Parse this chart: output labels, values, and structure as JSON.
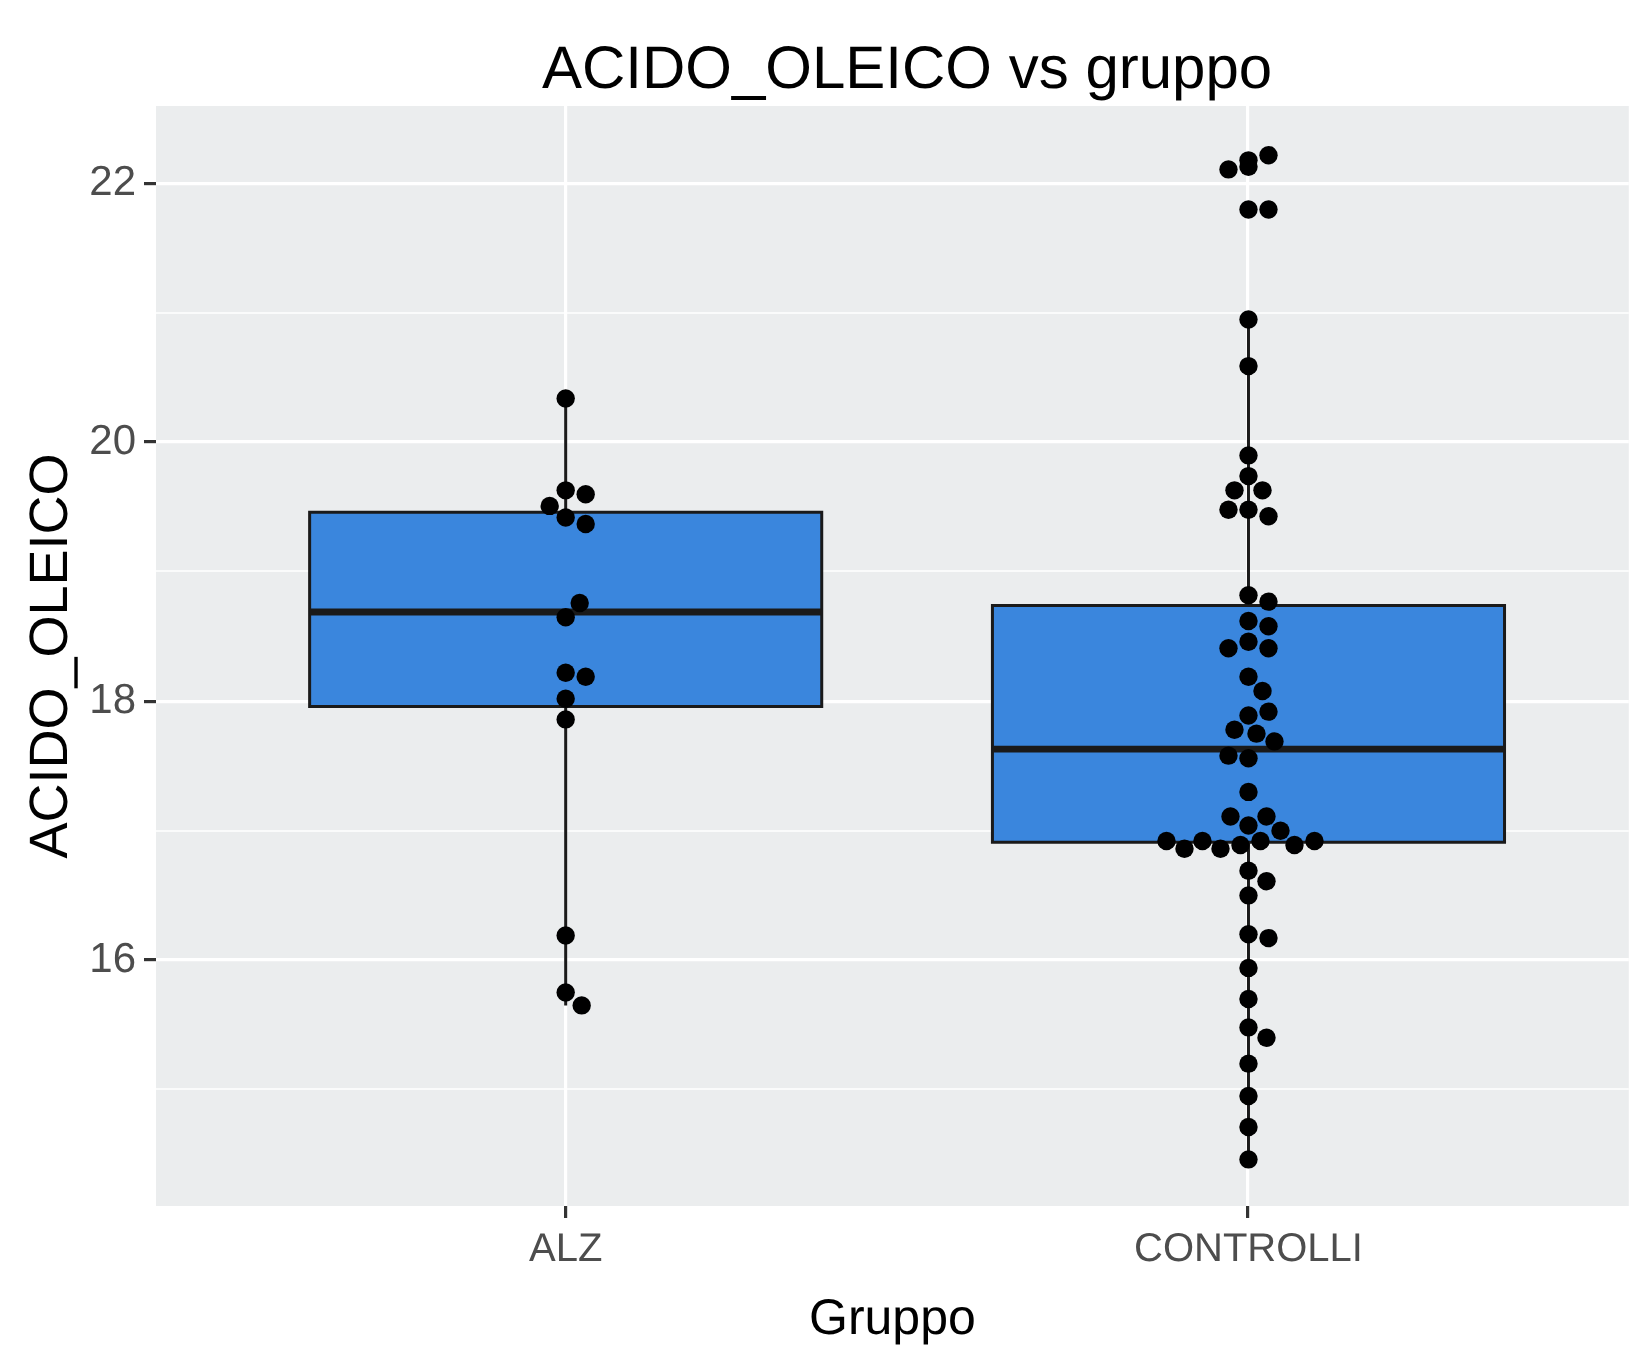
{
  "chart_data": {
    "type": "box",
    "title": "ACIDO_OLEICO vs gruppo",
    "xlabel": "Gruppo",
    "ylabel": "ACIDO_OLEICO",
    "categories": [
      "ALZ",
      "CONTROLLI"
    ],
    "color": "#3a86dd",
    "boxes": [
      {
        "low": 15.65,
        "q1": 17.96,
        "median": 18.69,
        "q3": 19.46,
        "high": 20.3
      },
      {
        "low": 14.46,
        "q1": 16.91,
        "median": 17.63,
        "q3": 18.74,
        "high": 21.01,
        "outliers": [
          22.18,
          22.13,
          21.8
        ]
      }
    ],
    "series": [
      {
        "type": "scatter",
        "color": "#000000",
        "marker": "circle",
        "x": [
          "ALZ",
          "ALZ",
          "ALZ",
          "ALZ",
          "ALZ",
          "ALZ",
          "ALZ",
          "ALZ",
          "ALZ",
          "ALZ",
          "ALZ",
          "ALZ",
          "ALZ",
          "ALZ",
          "ALZ",
          "CONTROLLI",
          "CONTROLLI",
          "CONTROLLI",
          "CONTROLLI",
          "CONTROLLI",
          "CONTROLLI",
          "CONTROLLI",
          "CONTROLLI",
          "CONTROLLI",
          "CONTROLLI",
          "CONTROLLI",
          "CONTROLLI",
          "CONTROLLI",
          "CONTROLLI",
          "CONTROLLI",
          "CONTROLLI",
          "CONTROLLI",
          "CONTROLLI",
          "CONTROLLI",
          "CONTROLLI",
          "CONTROLLI",
          "CONTROLLI",
          "CONTROLLI",
          "CONTROLLI",
          "CONTROLLI",
          "CONTROLLI",
          "CONTROLLI",
          "CONTROLLI",
          "CONTROLLI",
          "CONTROLLI",
          "CONTROLLI",
          "CONTROLLI",
          "CONTROLLI",
          "CONTROLLI",
          "CONTROLLI",
          "CONTROLLI",
          "CONTROLLI",
          "CONTROLLI",
          "CONTROLLI",
          "CONTROLLI",
          "CONTROLLI",
          "CONTROLLI",
          "CONTROLLI",
          "CONTROLLI",
          "CONTROLLI",
          "CONTROLLI",
          "CONTROLLI",
          "CONTROLLI",
          "CONTROLLI",
          "CONTROLLI",
          "CONTROLLI",
          "CONTROLLI",
          "CONTROLLI",
          "CONTROLLI"
        ],
        "values": [
          19.63,
          20.34,
          19.6,
          19.42,
          19.37,
          19.51,
          18.65,
          18.76,
          18.22,
          18.19,
          18.02,
          17.86,
          16.19,
          15.75,
          15.65,
          22.22,
          22.11,
          21.8,
          20.95,
          20.59,
          19.9,
          19.74,
          19.48,
          19.63,
          19.63,
          19.43,
          19.48,
          18.82,
          18.77,
          18.62,
          18.58,
          18.46,
          18.41,
          18.41,
          18.19,
          18.08,
          17.89,
          17.92,
          17.75,
          17.78,
          17.69,
          17.56,
          17.58,
          17.3,
          17.04,
          17.11,
          17.11,
          17,
          16.92,
          16.89,
          16.86,
          16.92,
          16.89,
          16.86,
          16.92,
          16.92,
          16.69,
          16.61,
          16.5,
          16.2,
          16.17,
          15.94,
          15.7,
          15.48,
          15.4,
          15.2,
          14.95,
          14.71,
          14.46
        ]
      }
    ],
    "ylim": [
      14.1,
      22.6
    ],
    "yticks": [
      {
        "value": 15,
        "label": null
      },
      16,
      {
        "value": 17,
        "label": null
      },
      18,
      {
        "value": 19,
        "label": null
      },
      20,
      {
        "value": 21,
        "label": null
      },
      22
    ],
    "grid": true
  }
}
